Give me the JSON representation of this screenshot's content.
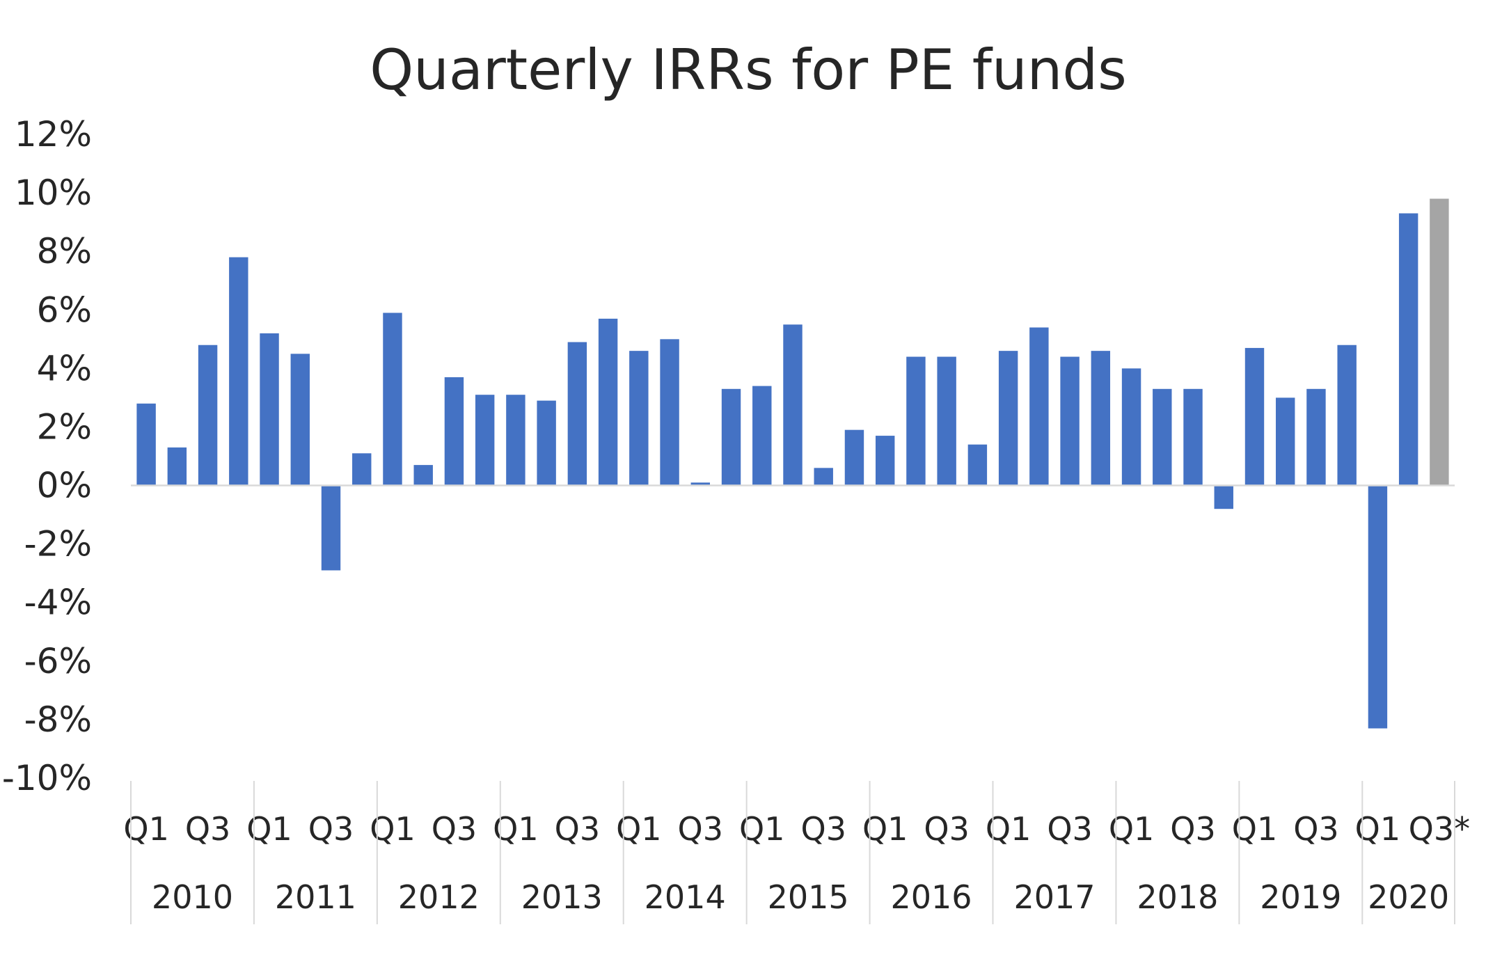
{
  "chart_data": {
    "type": "bar",
    "title": "Quarterly IRRs for PE funds",
    "xlabel": "",
    "ylabel": "",
    "ylim": [
      -0.1,
      0.12
    ],
    "y_ticks": [
      0.12,
      0.1,
      0.08,
      0.06,
      0.04,
      0.02,
      0.0,
      -0.02,
      -0.04,
      -0.06,
      -0.08,
      -0.1
    ],
    "y_tick_labels": [
      "12%",
      "10%",
      "8%",
      "6%",
      "4%",
      "2%",
      "0%",
      "-2%",
      "-4%",
      "-6%",
      "-8%",
      "-10%"
    ],
    "grid": false,
    "legend": "none",
    "categories": [
      "2010 Q1",
      "2010 Q2",
      "2010 Q3",
      "2010 Q4",
      "2011 Q1",
      "2011 Q2",
      "2011 Q3",
      "2011 Q4",
      "2012 Q1",
      "2012 Q2",
      "2012 Q3",
      "2012 Q4",
      "2013 Q1",
      "2013 Q2",
      "2013 Q3",
      "2013 Q4",
      "2014 Q1",
      "2014 Q2",
      "2014 Q3",
      "2014 Q4",
      "2015 Q1",
      "2015 Q2",
      "2015 Q3",
      "2015 Q4",
      "2016 Q1",
      "2016 Q2",
      "2016 Q3",
      "2016 Q4",
      "2017 Q1",
      "2017 Q2",
      "2017 Q3",
      "2017 Q4",
      "2018 Q1",
      "2018 Q2",
      "2018 Q3",
      "2018 Q4",
      "2019 Q1",
      "2019 Q2",
      "2019 Q3",
      "2019 Q4",
      "2020 Q1",
      "2020 Q2",
      "2020 Q3*"
    ],
    "values": [
      0.028,
      0.013,
      0.048,
      0.078,
      0.052,
      0.045,
      -0.029,
      0.011,
      0.059,
      0.007,
      0.037,
      0.031,
      0.031,
      0.029,
      0.049,
      0.057,
      0.046,
      0.05,
      0.001,
      0.033,
      0.034,
      0.055,
      0.006,
      0.019,
      0.017,
      0.044,
      0.044,
      0.014,
      0.046,
      0.054,
      0.044,
      0.046,
      0.04,
      0.033,
      0.033,
      -0.008,
      0.047,
      0.03,
      0.033,
      0.048,
      -0.083,
      0.093,
      0.098
    ],
    "quarter_tick_labels": [
      "Q1",
      "Q3",
      "Q1",
      "Q3",
      "Q1",
      "Q3",
      "Q1",
      "Q3",
      "Q1",
      "Q3",
      "Q1",
      "Q3",
      "Q1",
      "Q3",
      "Q1",
      "Q3",
      "Q1",
      "Q3",
      "Q1",
      "Q3",
      "Q1",
      "Q3*"
    ],
    "years": [
      "2010",
      "2011",
      "2012",
      "2013",
      "2014",
      "2015",
      "2016",
      "2017",
      "2018",
      "2019",
      "2020"
    ],
    "colors": {
      "bar": "#4472C4",
      "highlight_bar": "#A5A5A5",
      "axis": "#D9D9D9",
      "text": "#262626"
    },
    "highlight_index": 42
  }
}
